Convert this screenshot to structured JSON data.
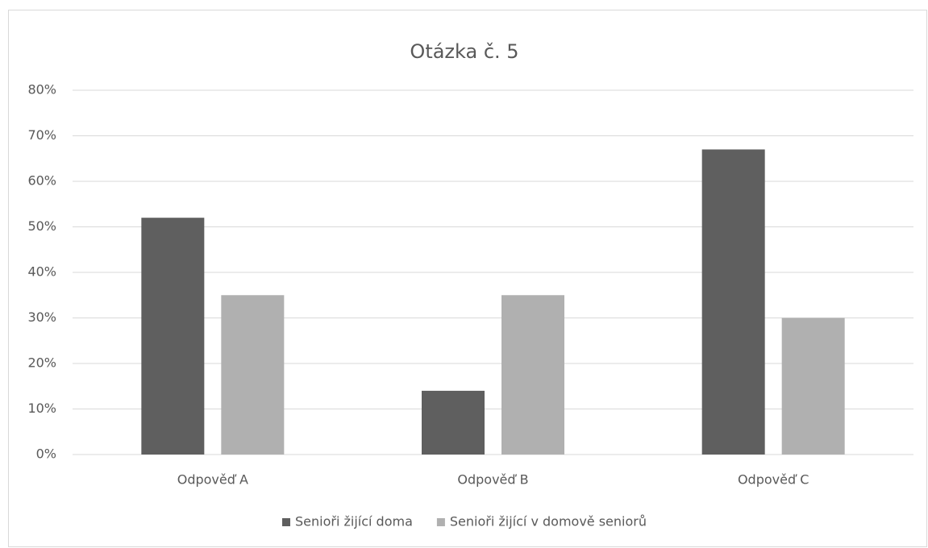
{
  "chart_data": {
    "type": "bar",
    "title": "Otázka č. 5",
    "categories": [
      "Odpověď A",
      "Odpověď B",
      "Odpověď C"
    ],
    "series": [
      {
        "name": "Senioři žijící doma",
        "color": "#5f5f5f",
        "values": [
          52,
          14,
          67
        ]
      },
      {
        "name": "Senioři žijící v domově seniorů",
        "color": "#b0b0b0",
        "values": [
          35,
          35,
          30
        ]
      }
    ],
    "ylim": [
      0,
      80
    ],
    "yticks": [
      {
        "value": 0,
        "label": "0%"
      },
      {
        "value": 10,
        "label": "10%"
      },
      {
        "value": 20,
        "label": "20%"
      },
      {
        "value": 30,
        "label": "30%"
      },
      {
        "value": 40,
        "label": "40%"
      },
      {
        "value": 50,
        "label": "50%"
      },
      {
        "value": 60,
        "label": "60%"
      },
      {
        "value": 70,
        "label": "70%"
      },
      {
        "value": 80,
        "label": "80%"
      }
    ],
    "grid": true,
    "legend": "bottom"
  }
}
